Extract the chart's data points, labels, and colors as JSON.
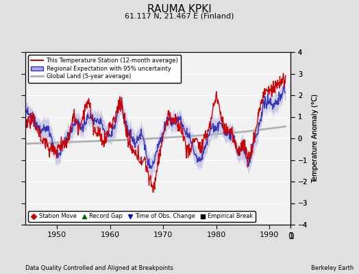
{
  "title": "RAUMA KPKI",
  "subtitle": "61.117 N, 21.467 E (Finland)",
  "xlabel_bottom": "Data Quality Controlled and Aligned at Breakpoints",
  "xlabel_right": "Berkeley Earth",
  "ylabel": "Temperature Anomaly (°C)",
  "xlim": [
    1944,
    1994
  ],
  "ylim": [
    -4,
    4
  ],
  "yticks": [
    -4,
    -3,
    -2,
    -1,
    0,
    1,
    2,
    3,
    4
  ],
  "xticks": [
    1950,
    1960,
    1970,
    1980,
    1990
  ],
  "bg_color": "#e0e0e0",
  "plot_bg_color": "#f2f2f2",
  "station_color": "#cc0000",
  "regional_color": "#3333bb",
  "regional_fill_color": "#aaaadd",
  "global_color": "#b0b0b0",
  "station_lw": 1.0,
  "regional_lw": 1.0,
  "global_lw": 2.0,
  "legend_line1": "This Temperature Station (12-month average)",
  "legend_line2": "Regional Expectation with 95% uncertainty",
  "legend_line3": "Global Land (5-year average)",
  "marker_legend": [
    {
      "marker": "D",
      "color": "#cc0000",
      "label": "Station Move"
    },
    {
      "marker": "^",
      "color": "#006600",
      "label": "Record Gap"
    },
    {
      "marker": "v",
      "color": "#0000cc",
      "label": "Time of Obs. Change"
    },
    {
      "marker": "s",
      "color": "#000000",
      "label": "Empirical Break"
    }
  ],
  "seed": 12345
}
